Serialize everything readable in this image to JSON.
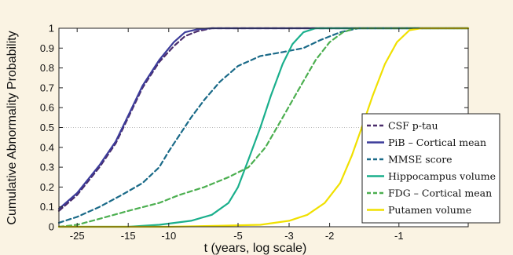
{
  "chart_data": {
    "type": "line",
    "xlabel": "t (years, log scale)",
    "ylabel": "Cumulative Abnormality Probability",
    "x_scale": "log",
    "xlim": [
      -30,
      -0.5
    ],
    "ylim": [
      0,
      1
    ],
    "x_ticks": [
      -25,
      -15,
      -10,
      -5,
      -3,
      -2,
      -1
    ],
    "y_ticks": [
      0,
      0.1,
      0.2,
      0.3,
      0.4,
      0.5,
      0.6,
      0.7,
      0.8,
      0.9,
      1
    ],
    "grid": false,
    "reference_line": {
      "y": 0.5,
      "style": "dotted"
    },
    "legend_position": "right",
    "series": [
      {
        "name": "CSF p-tau",
        "color": "#4a2c6b",
        "dash": "6,4",
        "points": [
          [
            -30,
            0.08
          ],
          [
            -25,
            0.16
          ],
          [
            -20,
            0.3
          ],
          [
            -17,
            0.42
          ],
          [
            -15,
            0.55
          ],
          [
            -13,
            0.7
          ],
          [
            -11,
            0.83
          ],
          [
            -9.5,
            0.91
          ],
          [
            -8.5,
            0.96
          ],
          [
            -7.5,
            0.985
          ],
          [
            -6.5,
            1.0
          ],
          [
            -0.5,
            1.0
          ]
        ]
      },
      {
        "name": "PiB – Cortical mean",
        "color": "#3c3c9a",
        "dash": "",
        "points": [
          [
            -30,
            0.09
          ],
          [
            -25,
            0.17
          ],
          [
            -20,
            0.31
          ],
          [
            -17,
            0.43
          ],
          [
            -15,
            0.56
          ],
          [
            -13,
            0.71
          ],
          [
            -11,
            0.84
          ],
          [
            -9.5,
            0.93
          ],
          [
            -8.5,
            0.98
          ],
          [
            -7.5,
            0.995
          ],
          [
            -6.5,
            1.0
          ],
          [
            -0.5,
            1.0
          ]
        ]
      },
      {
        "name": "MMSE score",
        "color": "#1a6a88",
        "dash": "6,4",
        "points": [
          [
            -30,
            0.02
          ],
          [
            -25,
            0.05
          ],
          [
            -20,
            0.1
          ],
          [
            -16,
            0.16
          ],
          [
            -13,
            0.22
          ],
          [
            -11,
            0.3
          ],
          [
            -10,
            0.38
          ],
          [
            -9,
            0.46
          ],
          [
            -8,
            0.55
          ],
          [
            -7,
            0.64
          ],
          [
            -6,
            0.73
          ],
          [
            -5,
            0.81
          ],
          [
            -4,
            0.86
          ],
          [
            -3.2,
            0.88
          ],
          [
            -2.6,
            0.9
          ],
          [
            -2.2,
            0.94
          ],
          [
            -1.8,
            0.98
          ],
          [
            -1.5,
            1.0
          ],
          [
            -0.5,
            1.0
          ]
        ]
      },
      {
        "name": "Hippocampus volume",
        "color": "#1aaf8c",
        "dash": "",
        "points": [
          [
            -30,
            0.0
          ],
          [
            -15,
            0.0
          ],
          [
            -11,
            0.01
          ],
          [
            -8,
            0.03
          ],
          [
            -6.5,
            0.06
          ],
          [
            -5.5,
            0.12
          ],
          [
            -5,
            0.2
          ],
          [
            -4.5,
            0.34
          ],
          [
            -4,
            0.5
          ],
          [
            -3.6,
            0.66
          ],
          [
            -3.2,
            0.82
          ],
          [
            -2.9,
            0.92
          ],
          [
            -2.6,
            0.98
          ],
          [
            -2.3,
            1.0
          ],
          [
            -0.5,
            1.0
          ]
        ]
      },
      {
        "name": "FDG – Cortical mean",
        "color": "#4caf50",
        "dash": "6,4",
        "points": [
          [
            -30,
            0.0
          ],
          [
            -25,
            0.01
          ],
          [
            -20,
            0.04
          ],
          [
            -15,
            0.08
          ],
          [
            -11,
            0.12
          ],
          [
            -9,
            0.16
          ],
          [
            -7,
            0.2
          ],
          [
            -5.5,
            0.25
          ],
          [
            -4.5,
            0.3
          ],
          [
            -3.8,
            0.4
          ],
          [
            -3.2,
            0.55
          ],
          [
            -2.7,
            0.7
          ],
          [
            -2.3,
            0.84
          ],
          [
            -2.0,
            0.93
          ],
          [
            -1.75,
            0.98
          ],
          [
            -1.55,
            1.0
          ],
          [
            -0.5,
            1.0
          ]
        ]
      },
      {
        "name": "Putamen volume",
        "color": "#f0e000",
        "dash": "",
        "points": [
          [
            -30,
            0.0
          ],
          [
            -10,
            0.0
          ],
          [
            -6,
            0.005
          ],
          [
            -4,
            0.01
          ],
          [
            -3,
            0.03
          ],
          [
            -2.5,
            0.06
          ],
          [
            -2.1,
            0.12
          ],
          [
            -1.8,
            0.22
          ],
          [
            -1.6,
            0.36
          ],
          [
            -1.45,
            0.5
          ],
          [
            -1.3,
            0.66
          ],
          [
            -1.15,
            0.82
          ],
          [
            -1.02,
            0.93
          ],
          [
            -0.9,
            0.99
          ],
          [
            -0.8,
            1.0
          ],
          [
            -0.5,
            1.0
          ]
        ]
      }
    ]
  }
}
